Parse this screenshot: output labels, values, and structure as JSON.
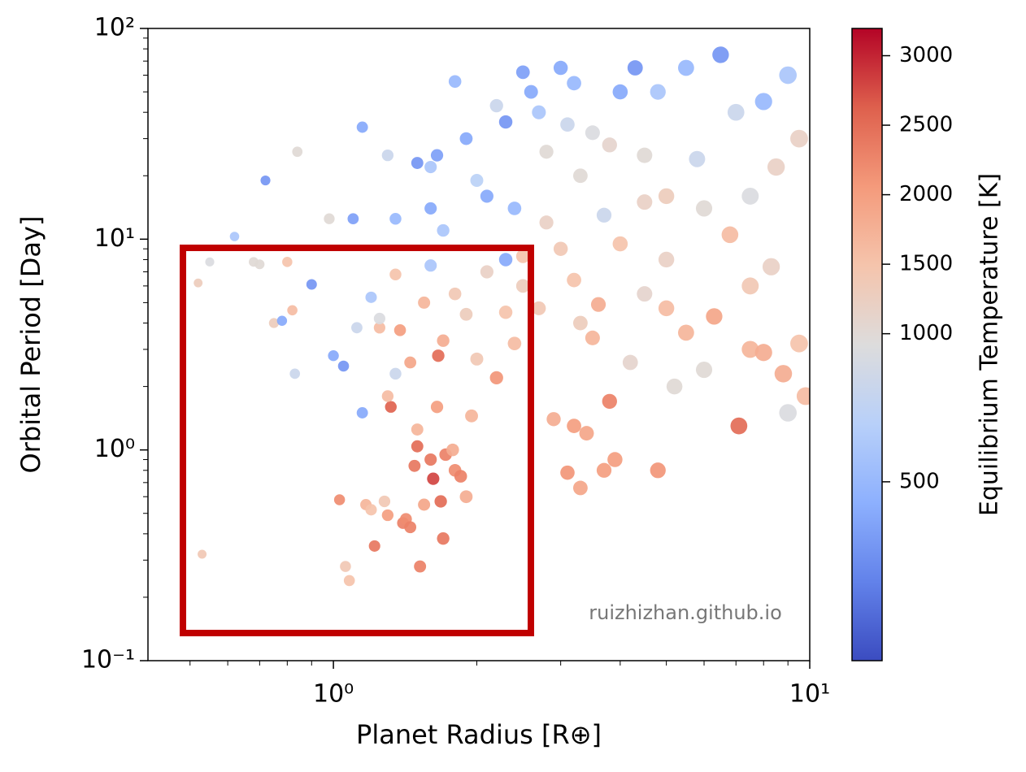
{
  "chart_data": {
    "type": "scatter",
    "xlabel": "Planet Radius [R⊕]",
    "ylabel": "Orbital Period [Day]",
    "annotation": "ruizhizhan.github.io",
    "xscale": "log",
    "yscale": "log",
    "xlim": [
      0.408,
      10
    ],
    "ylim": [
      0.1,
      100
    ],
    "xticks": [
      {
        "value": 1,
        "label": "10⁰"
      },
      {
        "value": 10,
        "label": "10¹"
      }
    ],
    "yticks": [
      {
        "value": 0.1,
        "label": "10⁻¹"
      },
      {
        "value": 1,
        "label": "10⁰"
      },
      {
        "value": 10,
        "label": "10¹"
      },
      {
        "value": 100,
        "label": "10²"
      }
    ],
    "xticks_minor": [
      0.5,
      0.6,
      0.7,
      0.8,
      0.9,
      2,
      3,
      4,
      5,
      6,
      7,
      8,
      9
    ],
    "yticks_minor": [
      0.2,
      0.3,
      0.4,
      0.5,
      0.6,
      0.7,
      0.8,
      0.9,
      2,
      3,
      4,
      5,
      6,
      7,
      8,
      9,
      20,
      30,
      40,
      50,
      60,
      70,
      80,
      90
    ],
    "colorbar": {
      "label": "Equilibrium Temperature [K]",
      "colormap": "coolwarm",
      "lim": [
        -50,
        3196
      ],
      "center": 922,
      "ticks": [
        500,
        1000,
        1500,
        2000,
        2500,
        3000
      ]
    },
    "x": [
      0.53,
      0.52,
      0.55,
      0.62,
      0.68,
      0.72,
      0.7,
      0.75,
      0.78,
      0.8,
      0.82,
      0.83,
      0.84,
      0.9,
      0.98,
      1.0,
      1.03,
      1.05,
      1.06,
      1.08,
      1.1,
      1.12,
      1.15,
      1.17,
      1.2,
      1.22,
      1.25,
      1.28,
      1.3,
      1.32,
      1.35,
      1.38,
      1.4,
      1.42,
      1.45,
      1.48,
      1.5,
      1.52,
      1.55,
      1.6,
      1.62,
      1.65,
      1.66,
      1.68,
      1.7,
      1.72,
      1.78,
      1.8,
      1.85,
      1.9,
      1.95,
      2.0,
      2.2,
      2.3,
      1.2,
      1.25,
      1.35,
      1.45,
      1.55,
      1.6,
      1.7,
      1.8,
      1.9,
      2.1,
      2.3,
      2.4,
      2.5,
      2.5,
      1.3,
      1.5,
      1.15,
      1.3,
      1.35,
      1.5,
      1.6,
      1.65,
      1.6,
      1.7,
      1.8,
      1.9,
      2.0,
      2.1,
      2.2,
      2.3,
      2.4,
      2.5,
      2.6,
      2.7,
      2.8,
      3.0,
      3.1,
      3.2,
      3.3,
      3.5,
      3.8,
      4.0,
      4.3,
      4.5,
      4.8,
      5.0,
      5.5,
      5.8,
      6.0,
      6.5,
      7.0,
      7.5,
      8.0,
      8.5,
      9.0,
      9.5,
      2.8,
      3.0,
      3.2,
      3.5,
      3.3,
      2.9,
      3.2,
      3.4,
      3.1,
      3.3,
      3.7,
      3.9,
      3.8,
      4.2,
      4.5,
      4.8,
      5.0,
      5.2,
      5.5,
      6.0,
      6.3,
      7.1,
      7.5,
      8.0,
      8.3,
      8.8,
      9.0,
      9.5,
      9.8,
      6.8,
      7.5,
      4.0,
      5.0,
      3.6,
      4.5,
      2.7,
      3.7
    ],
    "values": [
      0.32,
      6.2,
      7.8,
      10.3,
      7.8,
      19,
      7.6,
      4.0,
      4.1,
      7.8,
      4.6,
      2.3,
      26,
      6.1,
      12.5,
      2.8,
      0.58,
      2.5,
      0.28,
      0.24,
      12.5,
      3.8,
      1.5,
      0.55,
      0.52,
      0.35,
      3.8,
      0.57,
      0.49,
      1.6,
      2.3,
      3.7,
      0.45,
      0.47,
      0.43,
      0.84,
      1.04,
      0.28,
      0.55,
      0.9,
      0.73,
      1.6,
      2.8,
      0.57,
      0.38,
      0.95,
      1.0,
      0.8,
      0.75,
      0.6,
      1.45,
      2.7,
      2.2,
      4.5,
      5.3,
      4.2,
      6.8,
      2.6,
      5.0,
      7.5,
      3.3,
      5.5,
      4.4,
      7.0,
      8.0,
      3.2,
      6.0,
      8.3,
      1.8,
      1.25,
      34,
      25,
      12.5,
      23,
      22,
      25,
      14,
      11,
      56,
      30,
      19,
      16,
      43,
      36,
      14,
      62,
      50,
      40,
      26,
      65,
      35,
      55,
      20,
      32,
      28,
      50,
      65,
      25,
      50,
      16,
      65,
      24,
      14,
      75,
      40,
      16,
      45,
      22,
      60,
      30,
      12,
      9,
      6.4,
      3.4,
      4.0,
      1.4,
      1.3,
      1.2,
      0.78,
      0.66,
      0.8,
      0.9,
      1.7,
      2.6,
      5.5,
      0.8,
      4.7,
      2.0,
      3.6,
      2.4,
      4.3,
      1.3,
      3.0,
      2.9,
      7.4,
      2.3,
      1.5,
      3.2,
      1.8,
      10.5,
      6.0,
      9.5,
      8.0,
      4.9,
      15,
      4.7,
      13
    ],
    "temperature": [
      1400,
      1300,
      900,
      600,
      1000,
      300,
      1000,
      1300,
      400,
      1500,
      1600,
      800,
      1000,
      300,
      1000,
      400,
      2200,
      300,
      1400,
      1500,
      350,
      800,
      400,
      1700,
      1500,
      2400,
      1600,
      1400,
      2000,
      2600,
      800,
      2000,
      2300,
      2200,
      2300,
      2400,
      2500,
      2300,
      1900,
      2400,
      2800,
      2000,
      2500,
      2500,
      2400,
      2300,
      1800,
      2200,
      2300,
      1800,
      1700,
      1400,
      2100,
      1500,
      600,
      900,
      1500,
      1900,
      1700,
      600,
      1800,
      1400,
      1300,
      1200,
      400,
      1600,
      1300,
      1500,
      1600,
      1700,
      400,
      800,
      500,
      300,
      600,
      350,
      400,
      600,
      500,
      400,
      700,
      400,
      800,
      300,
      500,
      350,
      400,
      600,
      1000,
      400,
      800,
      500,
      1000,
      900,
      1100,
      400,
      300,
      1000,
      600,
      1300,
      500,
      800,
      1000,
      300,
      800,
      900,
      500,
      1200,
      600,
      1200,
      1200,
      1400,
      1500,
      1700,
      1300,
      1800,
      2000,
      1900,
      2100,
      1900,
      2000,
      2000,
      2300,
      1100,
      1100,
      2100,
      1600,
      1000,
      1700,
      1000,
      1900,
      2500,
      1700,
      1800,
      1200,
      1800,
      900,
      1500,
      1600,
      1600,
      1400,
      1500,
      1200,
      1800,
      1200,
      1400,
      800
    ]
  }
}
